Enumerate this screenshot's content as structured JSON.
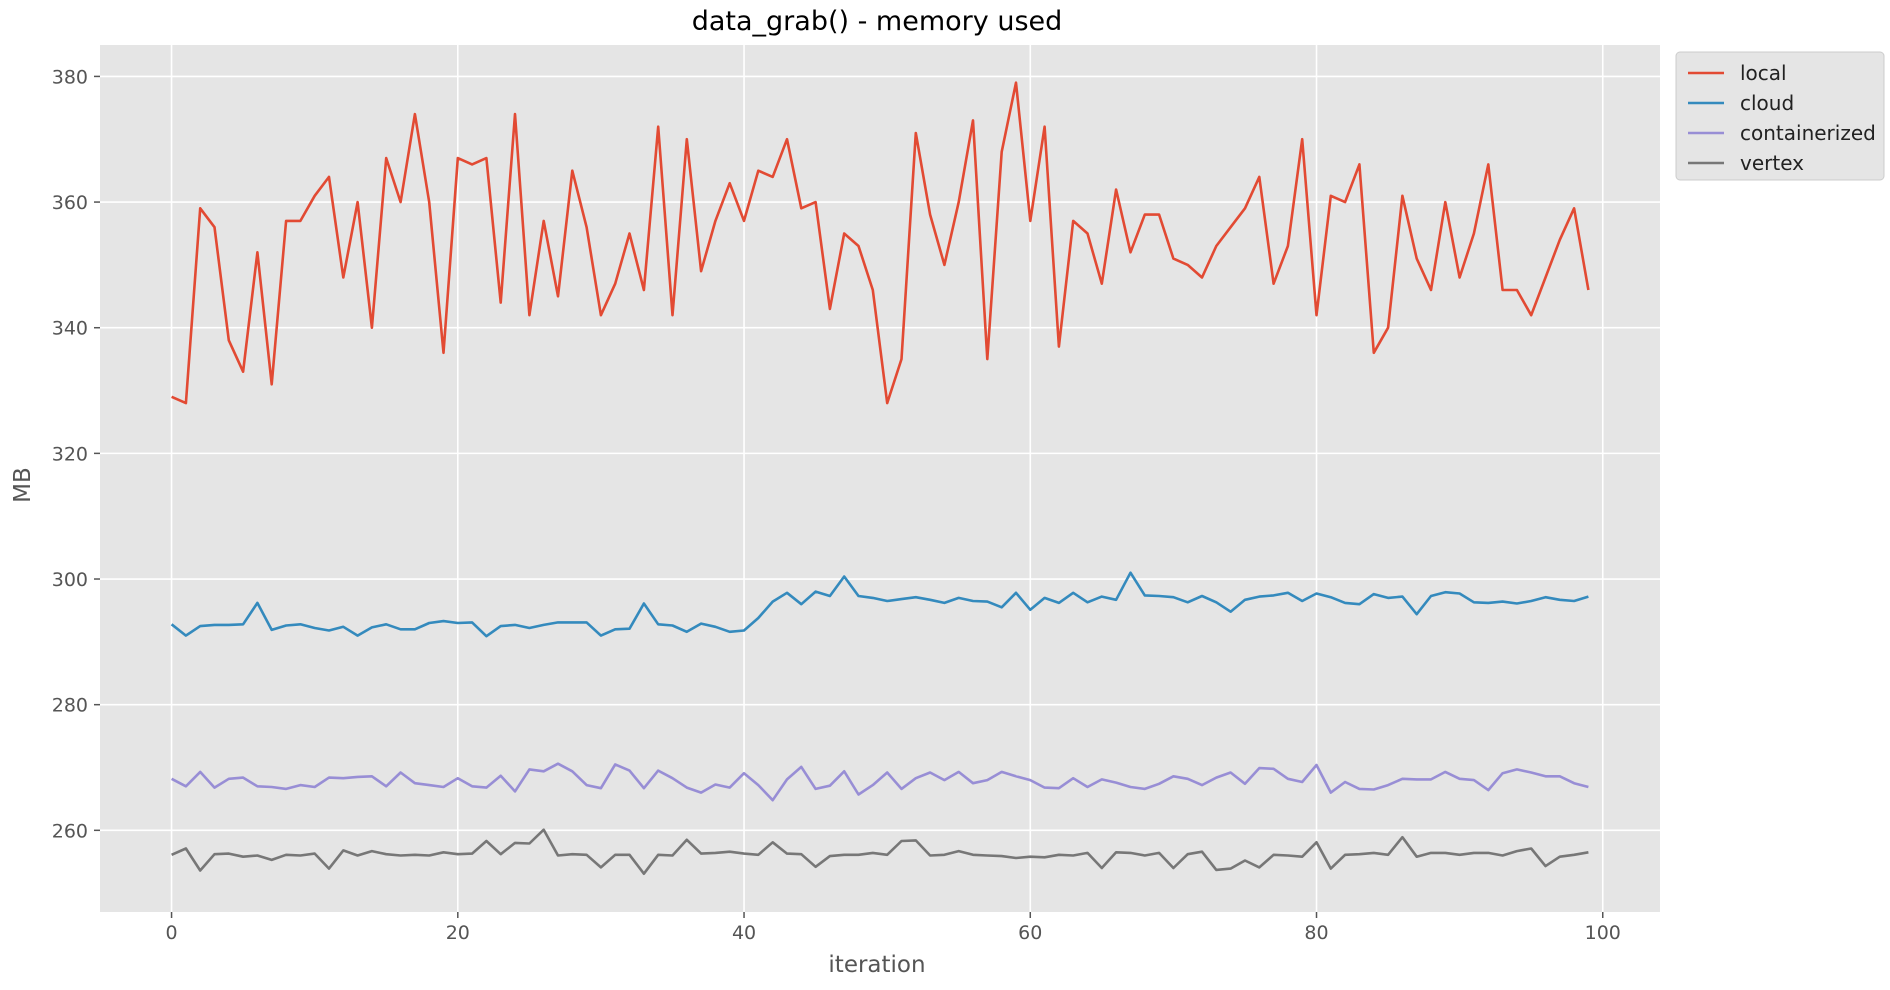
{
  "chart_data": {
    "type": "line",
    "title": "data_grab() - memory used",
    "xlabel": "iteration",
    "ylabel": "MB",
    "xlim": [
      -5,
      104
    ],
    "ylim": [
      247,
      385
    ],
    "xticks": [
      0,
      20,
      40,
      60,
      80,
      100
    ],
    "yticks": [
      260,
      280,
      300,
      320,
      340,
      360,
      380
    ],
    "grid": true,
    "legend_position": "outside-top-right",
    "style": "ggplot",
    "colors": {
      "background": "#e5e5e5",
      "grid": "#ffffff",
      "local": "#e24a33",
      "cloud": "#348abd",
      "containerized": "#988ed5",
      "vertex": "#777777"
    },
    "series": [
      {
        "name": "local",
        "x": [
          0,
          1,
          2,
          3,
          4,
          5,
          6,
          7,
          8,
          9,
          10,
          11,
          12,
          13,
          14,
          15,
          16,
          17,
          18,
          19,
          20,
          21,
          22,
          23,
          24,
          25,
          26,
          27,
          28,
          29,
          30,
          31,
          32,
          33,
          34,
          35,
          36,
          37,
          38,
          39,
          40,
          41,
          42,
          43,
          44,
          45,
          46,
          47,
          48,
          49,
          50,
          51,
          52,
          53,
          54,
          55,
          56,
          57,
          58,
          59,
          60,
          61,
          62,
          63,
          64,
          65,
          66,
          67,
          68,
          69,
          70,
          71,
          72,
          73,
          74,
          75,
          76,
          77,
          78,
          79,
          80,
          81,
          82,
          83,
          84,
          85,
          86,
          87,
          88,
          89,
          90,
          91,
          92,
          93,
          94,
          95,
          96,
          97,
          98,
          99
        ],
        "values": [
          329,
          328,
          359,
          356,
          338,
          333,
          352,
          331,
          357,
          357,
          361,
          364,
          348,
          360,
          340,
          367,
          360,
          374,
          360,
          336,
          367,
          366,
          367,
          344,
          374,
          342,
          357,
          345,
          365,
          356,
          342,
          347,
          355,
          346,
          372,
          342,
          370,
          349,
          357,
          363,
          357,
          365,
          364,
          370,
          359,
          360,
          343,
          355,
          353,
          346,
          328,
          335,
          371,
          358,
          350,
          360,
          373,
          335,
          368,
          379,
          357,
          372,
          337,
          357,
          355,
          347,
          362,
          352,
          358,
          358,
          351,
          350,
          348,
          353,
          356,
          359,
          364,
          347,
          353,
          370,
          342,
          361,
          360,
          366,
          336,
          340,
          361,
          351,
          346,
          360,
          348,
          355,
          366,
          346,
          346,
          342,
          348,
          354,
          359,
          346
        ]
      },
      {
        "name": "cloud",
        "x": [
          0,
          1,
          2,
          3,
          4,
          5,
          6,
          7,
          8,
          9,
          10,
          11,
          12,
          13,
          14,
          15,
          16,
          17,
          18,
          19,
          20,
          21,
          22,
          23,
          24,
          25,
          26,
          27,
          28,
          29,
          30,
          31,
          32,
          33,
          34,
          35,
          36,
          37,
          38,
          39,
          40,
          41,
          42,
          43,
          44,
          45,
          46,
          47,
          48,
          49,
          50,
          51,
          52,
          53,
          54,
          55,
          56,
          57,
          58,
          59,
          60,
          61,
          62,
          63,
          64,
          65,
          66,
          67,
          68,
          69,
          70,
          71,
          72,
          73,
          74,
          75,
          76,
          77,
          78,
          79,
          80,
          81,
          82,
          83,
          84,
          85,
          86,
          87,
          88,
          89,
          90,
          91,
          92,
          93,
          94,
          95,
          96,
          97,
          98,
          99
        ],
        "values": [
          292.8,
          291.0,
          292.5,
          292.7,
          292.7,
          292.8,
          296.2,
          291.9,
          292.6,
          292.8,
          292.2,
          291.8,
          292.4,
          291.0,
          292.3,
          292.8,
          292.0,
          292.0,
          293.0,
          293.3,
          293.0,
          293.1,
          290.9,
          292.5,
          292.7,
          292.2,
          292.7,
          293.1,
          293.1,
          293.1,
          291.0,
          292.0,
          292.1,
          296.1,
          292.8,
          292.6,
          291.6,
          292.9,
          292.4,
          291.6,
          291.8,
          293.8,
          296.4,
          297.8,
          296.0,
          298.0,
          297.3,
          300.4,
          297.3,
          297.0,
          296.5,
          296.8,
          297.1,
          296.7,
          296.2,
          297.0,
          296.5,
          296.4,
          295.5,
          297.8,
          295.1,
          297.0,
          296.2,
          297.8,
          296.3,
          297.2,
          296.7,
          301.0,
          297.4,
          297.3,
          297.1,
          296.3,
          297.3,
          296.3,
          294.8,
          296.7,
          297.2,
          297.4,
          297.8,
          296.5,
          297.7,
          297.1,
          296.2,
          296.0,
          297.6,
          297.0,
          297.2,
          294.4,
          297.3,
          297.9,
          297.7,
          296.3,
          296.2,
          296.4,
          296.1,
          296.5,
          297.1,
          296.7,
          296.5,
          297.2
        ]
      },
      {
        "name": "containerized",
        "x": [
          0,
          1,
          2,
          3,
          4,
          5,
          6,
          7,
          8,
          9,
          10,
          11,
          12,
          13,
          14,
          15,
          16,
          17,
          18,
          19,
          20,
          21,
          22,
          23,
          24,
          25,
          26,
          27,
          28,
          29,
          30,
          31,
          32,
          33,
          34,
          35,
          36,
          37,
          38,
          39,
          40,
          41,
          42,
          43,
          44,
          45,
          46,
          47,
          48,
          49,
          50,
          51,
          52,
          53,
          54,
          55,
          56,
          57,
          58,
          59,
          60,
          61,
          62,
          63,
          64,
          65,
          66,
          67,
          68,
          69,
          70,
          71,
          72,
          73,
          74,
          75,
          76,
          77,
          78,
          79,
          80,
          81,
          82,
          83,
          84,
          85,
          86,
          87,
          88,
          89,
          90,
          91,
          92,
          93,
          94,
          95,
          96,
          97,
          98,
          99
        ],
        "values": [
          268.2,
          267.0,
          269.3,
          266.8,
          268.2,
          268.4,
          267.0,
          266.9,
          266.6,
          267.2,
          266.9,
          268.4,
          268.3,
          268.5,
          268.6,
          267.0,
          269.2,
          267.5,
          267.2,
          266.9,
          268.3,
          267.0,
          266.8,
          268.7,
          266.2,
          269.7,
          269.4,
          270.6,
          269.4,
          267.2,
          266.7,
          270.5,
          269.5,
          266.7,
          269.5,
          268.3,
          266.8,
          266.0,
          267.3,
          266.8,
          269.1,
          267.2,
          264.8,
          268.1,
          270.1,
          266.6,
          267.1,
          269.4,
          265.7,
          267.2,
          269.2,
          266.6,
          268.3,
          269.2,
          268.0,
          269.3,
          267.5,
          268.0,
          269.3,
          268.6,
          268.0,
          266.8,
          266.7,
          268.3,
          266.9,
          268.1,
          267.6,
          266.9,
          266.6,
          267.4,
          268.6,
          268.2,
          267.2,
          268.4,
          269.2,
          267.4,
          269.9,
          269.8,
          268.2,
          267.7,
          270.4,
          266.0,
          267.7,
          266.6,
          266.5,
          267.2,
          268.2,
          268.1,
          268.1,
          269.3,
          268.2,
          268.0,
          266.4,
          269.1,
          269.7,
          269.2,
          268.6,
          268.6,
          267.5,
          266.9
        ]
      },
      {
        "name": "vertex",
        "x": [
          0,
          1,
          2,
          3,
          4,
          5,
          6,
          7,
          8,
          9,
          10,
          11,
          12,
          13,
          14,
          15,
          16,
          17,
          18,
          19,
          20,
          21,
          22,
          23,
          24,
          25,
          26,
          27,
          28,
          29,
          30,
          31,
          32,
          33,
          34,
          35,
          36,
          37,
          38,
          39,
          40,
          41,
          42,
          43,
          44,
          45,
          46,
          47,
          48,
          49,
          50,
          51,
          52,
          53,
          54,
          55,
          56,
          57,
          58,
          59,
          60,
          61,
          62,
          63,
          64,
          65,
          66,
          67,
          68,
          69,
          70,
          71,
          72,
          73,
          74,
          75,
          76,
          77,
          78,
          79,
          80,
          81,
          82,
          83,
          84,
          85,
          86,
          87,
          88,
          89,
          90,
          91,
          92,
          93,
          94,
          95,
          96,
          97,
          98,
          99
        ],
        "values": [
          256.1,
          257.1,
          253.6,
          256.2,
          256.3,
          255.8,
          256.0,
          255.3,
          256.1,
          256.0,
          256.3,
          253.9,
          256.8,
          256.0,
          256.7,
          256.2,
          256.0,
          256.1,
          256.0,
          256.5,
          256.2,
          256.3,
          258.3,
          256.2,
          258.0,
          257.9,
          260.1,
          256.0,
          256.2,
          256.1,
          254.1,
          256.1,
          256.1,
          253.1,
          256.1,
          256.0,
          258.5,
          256.3,
          256.4,
          256.6,
          256.3,
          256.1,
          258.1,
          256.3,
          256.2,
          254.2,
          255.9,
          256.1,
          256.1,
          256.4,
          256.1,
          258.3,
          258.4,
          256.0,
          256.1,
          256.7,
          256.1,
          256.0,
          255.9,
          255.6,
          255.8,
          255.7,
          256.1,
          256.0,
          256.4,
          254.0,
          256.5,
          256.4,
          256.0,
          256.4,
          254.0,
          256.2,
          256.6,
          253.7,
          253.9,
          255.2,
          254.1,
          256.1,
          256.0,
          255.8,
          258.1,
          253.9,
          256.1,
          256.2,
          256.4,
          256.1,
          258.9,
          255.8,
          256.4,
          256.4,
          256.1,
          256.4,
          256.4,
          256.0,
          256.7,
          257.1,
          254.3,
          255.8,
          256.1,
          256.5
        ]
      }
    ]
  }
}
